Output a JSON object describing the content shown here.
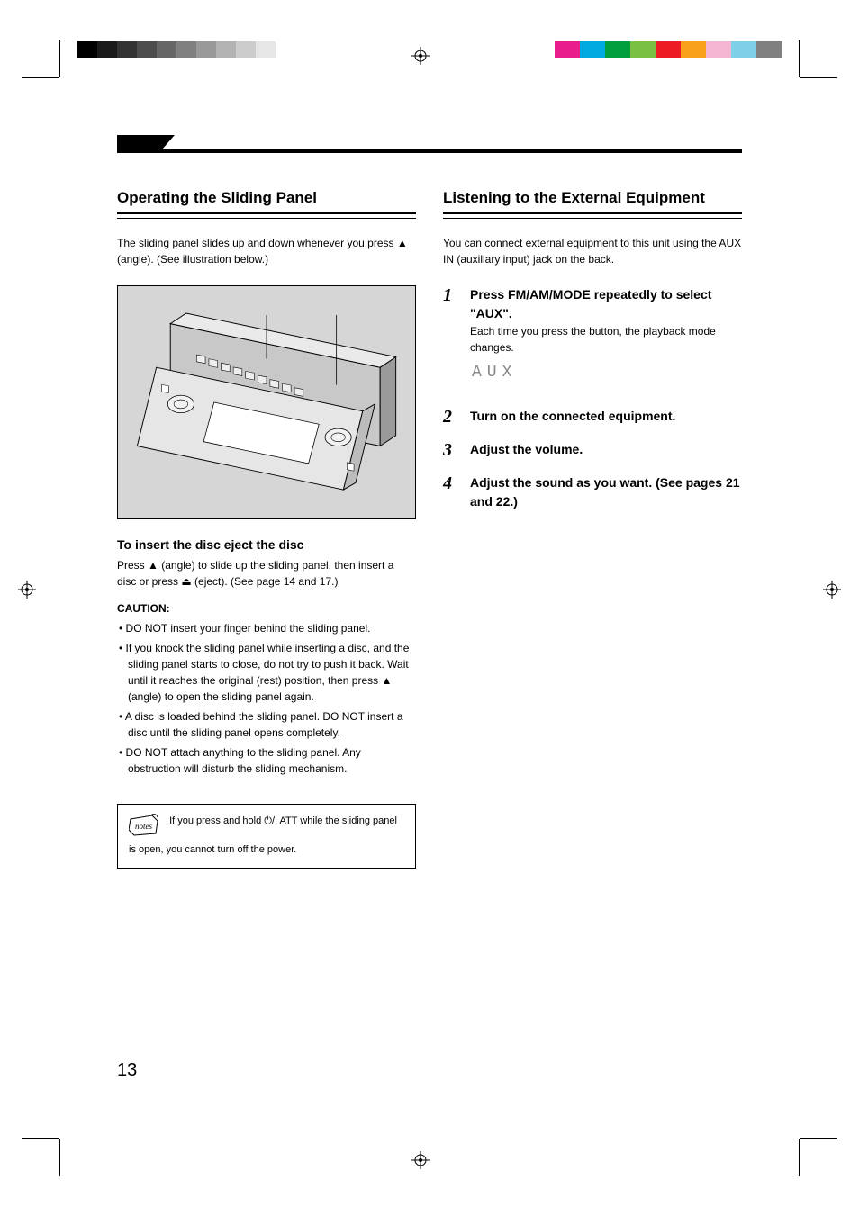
{
  "printer": {
    "gray_swatches": [
      "#000000",
      "#1a1a1a",
      "#333333",
      "#4d4d4d",
      "#666666",
      "#808080",
      "#999999",
      "#b3b3b3",
      "#cccccc",
      "#e6e6e6"
    ],
    "color_swatches": [
      "#e91e8c",
      "#00a9e0",
      "#009e3d",
      "#7ac143",
      "#ed1c24",
      "#f9a11b",
      "#f4b6d2",
      "#7ecfe8",
      "#808080"
    ]
  },
  "page_number": "13",
  "left": {
    "title": "Operating the Sliding Panel",
    "intro": "The sliding panel slides up and down whenever you press ▲ (angle). (See illustration below.)",
    "eject_head": "To insert the disc eject the disc",
    "eject_body": "Press ▲ (angle) to slide up the sliding panel, then insert a disc or press ⏏ (eject). (See page 14 and 17.)",
    "caution_head": "CAUTION:",
    "bullets": [
      "DO NOT insert your finger behind the sliding panel.",
      "If you knock the sliding panel while inserting a disc, and the sliding panel starts to close, do not try to push it back. Wait until it reaches the original (rest) position, then press ▲ (angle) to open the sliding panel again.",
      "A disc is loaded behind the sliding panel. DO NOT insert a disc until the sliding panel opens completely.",
      "DO NOT attach anything to the sliding panel. Any obstruction will disturb the sliding mechanism."
    ],
    "note": "If you press and hold ⏻/I ATT while the sliding panel is open, you cannot turn off the power."
  },
  "right": {
    "title": "Listening to the External Equipment",
    "intro": "You can connect external equipment to this unit using the AUX IN (auxiliary input) jack on the back.",
    "steps": [
      {
        "n": "1",
        "head": "Press FM/AM/MODE repeatedly to select \"AUX\".",
        "sub": "Each time you press the button, the playback mode changes."
      },
      {
        "n": "2",
        "head": "Turn on the connected equipment."
      },
      {
        "n": "3",
        "head": "Adjust the volume."
      },
      {
        "n": "4",
        "head": "Adjust the sound as you want. (See pages 21 and 22.)"
      }
    ],
    "aux_label": "AUX"
  },
  "illus": {
    "bg": "#d6d6d6",
    "line": "#000000"
  }
}
